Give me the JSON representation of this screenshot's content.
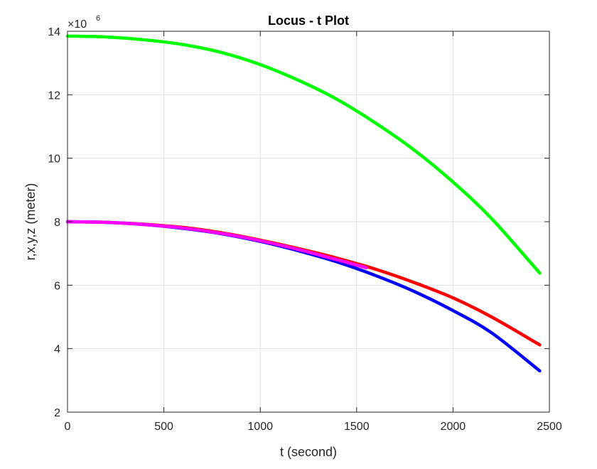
{
  "chart_data": {
    "type": "line",
    "title": "Locus - t Plot",
    "xlabel": "t (second)",
    "ylabel": "r,x,y,z (meter)",
    "y_exponent": {
      "base": "×10",
      "power": "6"
    },
    "xlim": [
      0,
      2500
    ],
    "ylim": [
      2,
      14
    ],
    "x_ticks": [
      0,
      500,
      1000,
      1500,
      2000,
      2500
    ],
    "y_ticks": [
      2,
      4,
      6,
      8,
      10,
      12,
      14
    ],
    "grid": true,
    "series": [
      {
        "color": "#00ff00",
        "x": [
          0,
          200,
          400,
          600,
          800,
          1000,
          1200,
          1400,
          1600,
          1800,
          2000,
          2200,
          2450
        ],
        "y": [
          13.85,
          13.82,
          13.73,
          13.58,
          13.33,
          12.95,
          12.45,
          11.85,
          11.1,
          10.25,
          9.25,
          8.1,
          6.38
        ]
      },
      {
        "color": "#ff0000",
        "x": [
          0,
          200,
          400,
          600,
          800,
          1000,
          1200,
          1400,
          1600,
          1800,
          2000,
          2200,
          2450
        ],
        "y": [
          8.0,
          7.98,
          7.92,
          7.82,
          7.65,
          7.42,
          7.15,
          6.85,
          6.5,
          6.08,
          5.6,
          5.0,
          4.12
        ]
      },
      {
        "color": "#0000ff",
        "x": [
          0,
          200,
          400,
          600,
          800,
          1000,
          1200,
          1400,
          1600,
          1800,
          2000,
          2200,
          2450
        ],
        "y": [
          8.0,
          7.98,
          7.91,
          7.79,
          7.62,
          7.38,
          7.08,
          6.73,
          6.3,
          5.8,
          5.2,
          4.5,
          3.3
        ]
      },
      {
        "color": "#ff00ff",
        "x": [
          0,
          200,
          400,
          600,
          800,
          1000,
          1200,
          1400,
          1550
        ],
        "y": [
          8.0,
          7.98,
          7.91,
          7.8,
          7.63,
          7.4,
          7.12,
          6.8,
          6.55
        ]
      }
    ]
  }
}
